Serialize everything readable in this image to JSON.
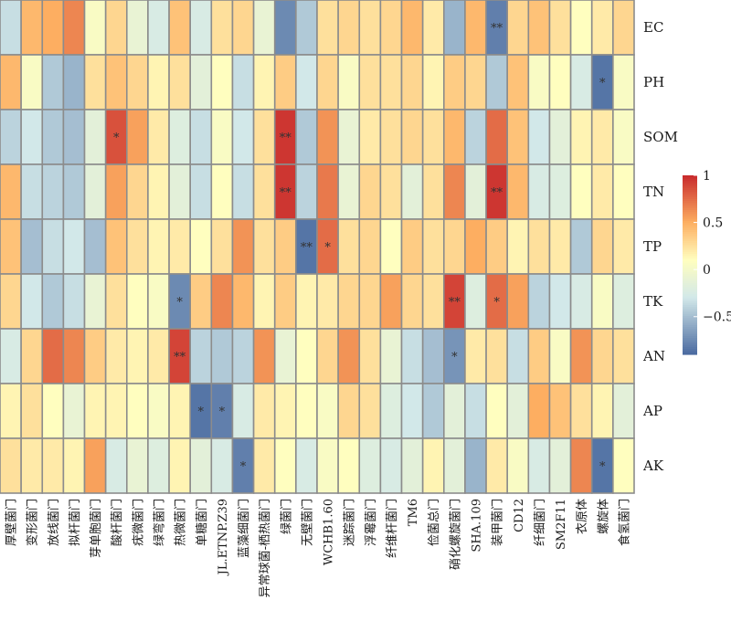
{
  "chart_data": {
    "type": "heatmap",
    "rows": [
      "EC",
      "PH",
      "SOM",
      "TN",
      "TP",
      "TK",
      "AN",
      "AP",
      "AK"
    ],
    "columns": [
      "厚壁菌门",
      "变形菌门",
      "放线菌门",
      "拟杆菌门",
      "芽单胞菌门",
      "酸杆菌门",
      "疣微菌门",
      "绿弯菌门",
      "热微菌门",
      "单糖菌门",
      "JL.ETNP.Z39",
      "蓝藻细菌门",
      "异常球菌-栖热菌门",
      "绿菌门",
      "无壁菌门",
      "WCHB1.60",
      "迷踪菌门",
      "浮霉菌门",
      "纤维杆菌门",
      "TM6",
      "俭菌总门",
      "硝化螺旋菌门",
      "SHA.109",
      "装甲菌门",
      "CD12",
      "纤细菌门",
      "SM2F11",
      "衣原体",
      "螺旋体",
      "食氢菌门"
    ],
    "values": [
      [
        -0.35,
        0.45,
        0.5,
        0.65,
        0.05,
        0.3,
        -0.1,
        -0.25,
        0.4,
        -0.25,
        0.25,
        0.3,
        -0.1,
        -0.75,
        -0.45,
        0.25,
        0.3,
        0.25,
        0.3,
        0.45,
        0.2,
        -0.55,
        0.45,
        -0.8,
        0.3,
        0.4,
        0.25,
        0.1,
        0.2,
        0.3
      ],
      [
        0.45,
        0.05,
        -0.45,
        -0.55,
        0.25,
        0.4,
        0.3,
        0.15,
        0.25,
        -0.15,
        0.1,
        -0.35,
        0.15,
        0.35,
        -0.3,
        0.3,
        0.05,
        0.25,
        0.25,
        0.3,
        0.15,
        0.35,
        0.3,
        -0.45,
        0.4,
        0.05,
        0.1,
        -0.25,
        -0.85,
        0.05
      ],
      [
        -0.4,
        -0.3,
        -0.45,
        -0.5,
        -0.15,
        0.85,
        0.55,
        0.2,
        -0.2,
        -0.35,
        0.05,
        -0.3,
        0.25,
        0.95,
        -0.45,
        0.6,
        -0.1,
        0.2,
        0.25,
        0.3,
        0.25,
        0.45,
        -0.4,
        0.75,
        0.4,
        -0.3,
        -0.15,
        0.15,
        0.2,
        0.05
      ],
      [
        0.45,
        -0.35,
        -0.4,
        -0.45,
        -0.15,
        0.55,
        0.3,
        0.15,
        -0.15,
        -0.35,
        0.1,
        -0.35,
        0.25,
        0.95,
        -0.4,
        0.7,
        -0.1,
        0.3,
        0.25,
        -0.15,
        0.25,
        0.65,
        -0.15,
        0.95,
        0.45,
        -0.25,
        -0.2,
        0.1,
        0.2,
        0.1
      ],
      [
        0.4,
        -0.5,
        -0.35,
        -0.3,
        -0.5,
        0.4,
        0.25,
        0.15,
        0.2,
        0.1,
        0.25,
        0.6,
        0.25,
        0.35,
        -0.85,
        0.75,
        0.25,
        0.3,
        0.1,
        0.35,
        0.25,
        0.3,
        0.5,
        0.35,
        0.15,
        0.25,
        0.2,
        -0.45,
        0.3,
        0.2
      ],
      [
        0.3,
        -0.3,
        -0.45,
        -0.35,
        -0.1,
        0.25,
        0.1,
        0.05,
        -0.75,
        0.35,
        0.65,
        0.45,
        0.15,
        0.35,
        0.15,
        0.2,
        0.3,
        0.3,
        0.55,
        0.3,
        0.25,
        0.9,
        -0.2,
        0.75,
        0.55,
        -0.4,
        -0.3,
        -0.25,
        0.05,
        -0.2
      ],
      [
        -0.25,
        0.3,
        0.75,
        0.65,
        0.35,
        0.2,
        0.15,
        0.2,
        0.9,
        -0.4,
        -0.45,
        -0.4,
        0.6,
        -0.1,
        0.1,
        0.3,
        0.6,
        0.25,
        -0.1,
        -0.35,
        -0.5,
        -0.7,
        0.2,
        0.25,
        -0.35,
        0.35,
        0.05,
        0.6,
        0.3,
        0.25
      ],
      [
        0.15,
        0.25,
        0.1,
        -0.1,
        0.15,
        0.15,
        0.1,
        0.05,
        0.15,
        -0.85,
        -0.8,
        -0.25,
        0.2,
        0.15,
        0.1,
        0.05,
        0.3,
        0.25,
        -0.2,
        -0.3,
        -0.45,
        -0.15,
        -0.35,
        0.1,
        -0.15,
        0.5,
        0.4,
        0.25,
        0.15,
        -0.15
      ],
      [
        0.25,
        0.2,
        0.2,
        0.15,
        0.55,
        -0.25,
        -0.1,
        -0.2,
        0.15,
        -0.15,
        -0.25,
        -0.8,
        0.2,
        0.1,
        -0.25,
        0.05,
        0.1,
        -0.2,
        -0.25,
        -0.15,
        0.15,
        -0.15,
        -0.55,
        0.2,
        0.05,
        -0.25,
        -0.15,
        0.65,
        -0.85,
        0.1
      ]
    ],
    "significance": [
      [
        "",
        "",
        "",
        "",
        "",
        "",
        "",
        "",
        "",
        "",
        "",
        "",
        "",
        "",
        "",
        "",
        "",
        "",
        "",
        "",
        "",
        "",
        "",
        "**",
        "",
        "",
        "",
        "",
        "",
        ""
      ],
      [
        "",
        "",
        "",
        "",
        "",
        "",
        "",
        "",
        "",
        "",
        "",
        "",
        "",
        "",
        "",
        "",
        "",
        "",
        "",
        "",
        "",
        "",
        "",
        "",
        "",
        "",
        "",
        "",
        "*",
        ""
      ],
      [
        "",
        "",
        "",
        "",
        "",
        "*",
        "",
        "",
        "",
        "",
        "",
        "",
        "",
        "**",
        "",
        "",
        "",
        "",
        "",
        "",
        "",
        "",
        "",
        "",
        "",
        "",
        "",
        "",
        "",
        ""
      ],
      [
        "",
        "",
        "",
        "",
        "",
        "",
        "",
        "",
        "",
        "",
        "",
        "",
        "",
        "**",
        "",
        "",
        "",
        "",
        "",
        "",
        "",
        "",
        "",
        "**",
        "",
        "",
        "",
        "",
        "",
        ""
      ],
      [
        "",
        "",
        "",
        "",
        "",
        "",
        "",
        "",
        "",
        "",
        "",
        "",
        "",
        "",
        "**",
        "*",
        "",
        "",
        "",
        "",
        "",
        "",
        "",
        "",
        "",
        "",
        "",
        "",
        "",
        ""
      ],
      [
        "",
        "",
        "",
        "",
        "",
        "",
        "",
        "",
        "*",
        "",
        "",
        "",
        "",
        "",
        "",
        "",
        "",
        "",
        "",
        "",
        "",
        "**",
        "",
        "*",
        "",
        "",
        "",
        "",
        "",
        ""
      ],
      [
        "",
        "",
        "",
        "",
        "",
        "",
        "",
        "",
        "**",
        "",
        "",
        "",
        "",
        "",
        "",
        "",
        "",
        "",
        "",
        "",
        "",
        "*",
        "",
        "",
        "",
        "",
        "",
        "",
        "",
        ""
      ],
      [
        "",
        "",
        "",
        "",
        "",
        "",
        "",
        "",
        "",
        "*",
        "*",
        "",
        "",
        "",
        "",
        "",
        "",
        "",
        "",
        "",
        "",
        "",
        "",
        "",
        "",
        "",
        "",
        "",
        "",
        ""
      ],
      [
        "",
        "",
        "",
        "",
        "",
        "",
        "",
        "",
        "",
        "",
        "",
        "*",
        "",
        "",
        "",
        "",
        "",
        "",
        "",
        "",
        "",
        "",
        "",
        "",
        "",
        "",
        "",
        "",
        "*",
        ""
      ]
    ],
    "colorbar": {
      "ticks": [
        "1",
        "0.5",
        "0",
        "−0.5"
      ],
      "tick_values": [
        1,
        0.5,
        0,
        -0.5
      ],
      "range": [
        -0.9,
        1
      ]
    },
    "colors": {
      "low": "#4a6aa0",
      "mid_low": "#d2e8e9",
      "mid": "#fffebf",
      "mid_high": "#fdae61",
      "high": "#c8292c",
      "grid": "#8c8c8c"
    },
    "title": "",
    "xlabel": "",
    "ylabel": "",
    "grid": true,
    "legend": "right"
  }
}
